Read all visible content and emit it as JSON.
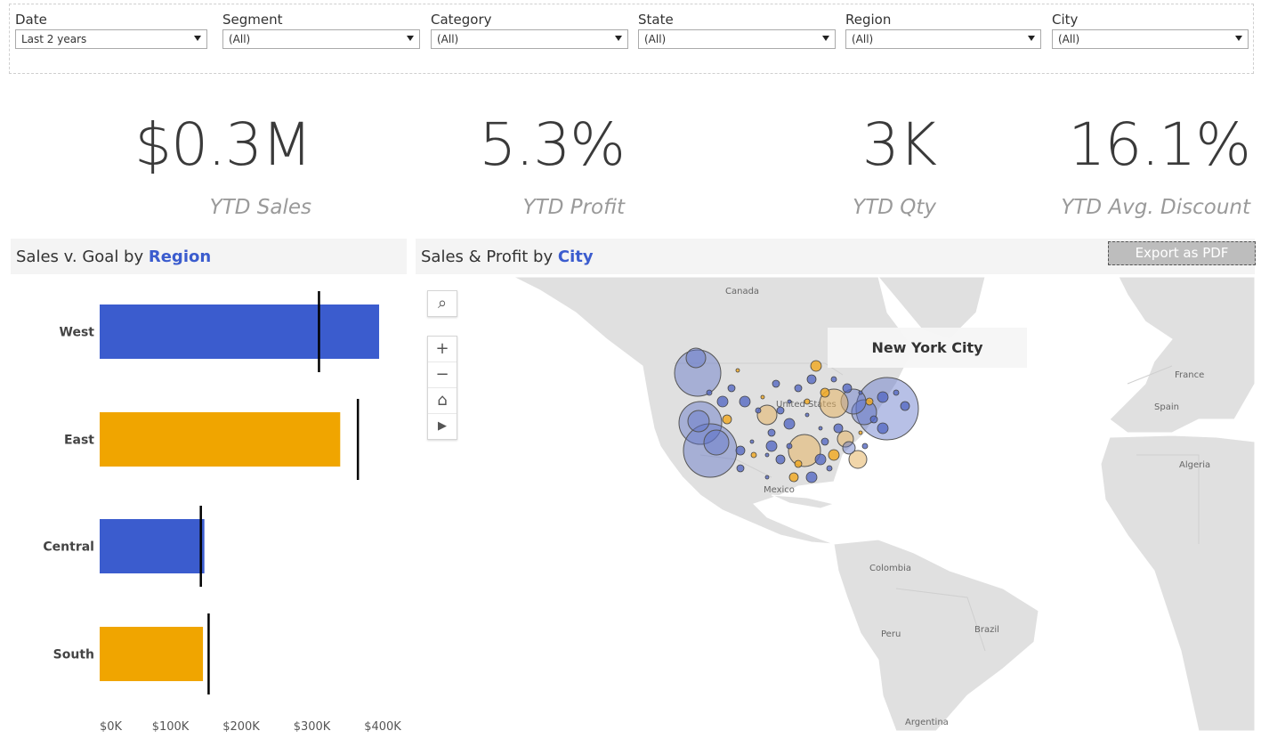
{
  "filters": [
    {
      "label": "Date",
      "value": "Last 2 years"
    },
    {
      "label": "Segment",
      "value": "(All)"
    },
    {
      "label": "Category",
      "value": "(All)"
    },
    {
      "label": "State",
      "value": "(All)"
    },
    {
      "label": "Region",
      "value": "(All)"
    },
    {
      "label": "City",
      "value": "(All)"
    }
  ],
  "kpis": [
    {
      "value": "$0.3M",
      "label": "YTD Sales"
    },
    {
      "value": "5.3%",
      "label": "YTD Profit"
    },
    {
      "value": "3K",
      "label": "YTD Qty"
    },
    {
      "value": "16.1%",
      "label": "YTD Avg. Discount"
    }
  ],
  "sales_panel": {
    "title_prefix": "Sales v. Goal by",
    "title_highlight": "Region"
  },
  "map_panel": {
    "title_prefix": "Sales & Profit by",
    "title_highlight": "City",
    "export_label": "Export as PDF",
    "tooltip": "New York City",
    "labels": [
      "Canada",
      "United States",
      "Mexico",
      "Colombia",
      "Peru",
      "Brazil",
      "Argentina",
      "France",
      "Spain",
      "Algeria"
    ],
    "tools": [
      "search-icon",
      "zoom-in-icon",
      "zoom-out-icon",
      "home-icon",
      "play-icon"
    ]
  },
  "colors": {
    "accent": "#3b5cce",
    "bar_blue": "#3b5cce",
    "bar_orange": "#f0a500",
    "goal": "#000000"
  },
  "chart_data": {
    "type": "bar",
    "orientation": "horizontal",
    "categories": [
      "West",
      "East",
      "Central",
      "South"
    ],
    "series": [
      {
        "values": [
          395000,
          340000,
          148000,
          146000
        ]
      }
    ],
    "goals": [
      310000,
      365000,
      143000,
      154000
    ],
    "bar_colors": [
      "#3b5cce",
      "#f0a500",
      "#3b5cce",
      "#f0a500"
    ],
    "xticks": [
      "$0K",
      "$100K",
      "$200K",
      "$300K",
      "$400K"
    ],
    "xtick_values": [
      0,
      100000,
      200000,
      300000,
      400000
    ],
    "xlim": [
      0,
      400000
    ]
  }
}
